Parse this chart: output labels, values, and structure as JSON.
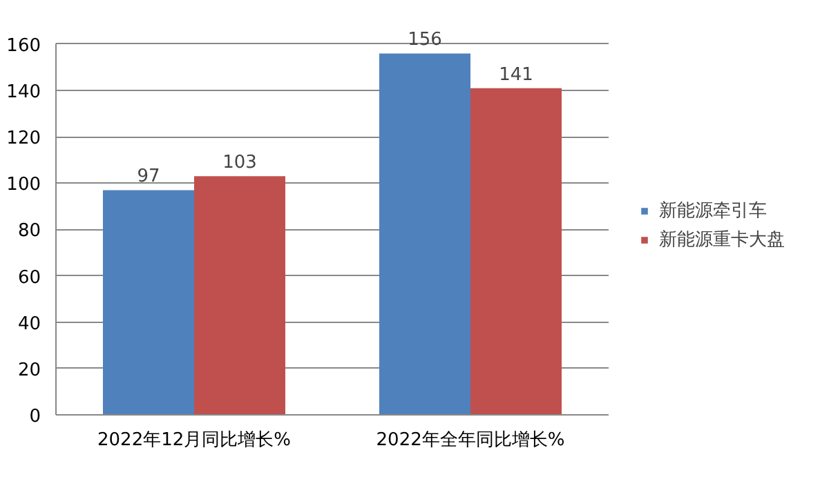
{
  "chart_data": {
    "type": "bar",
    "categories": [
      "2022年12月同比增长%",
      "2022年全年同比增长%"
    ],
    "series": [
      {
        "name": "新能源牵引车",
        "color": "#4f81bd",
        "values": [
          97,
          156
        ]
      },
      {
        "name": "新能源重卡大盘",
        "color": "#c0504d",
        "values": [
          103,
          141
        ]
      }
    ],
    "ylim": [
      0,
      160
    ],
    "yticks": [
      0,
      20,
      40,
      60,
      80,
      100,
      120,
      140,
      160
    ],
    "grid": "y",
    "legend": "right",
    "data_labels": true
  }
}
